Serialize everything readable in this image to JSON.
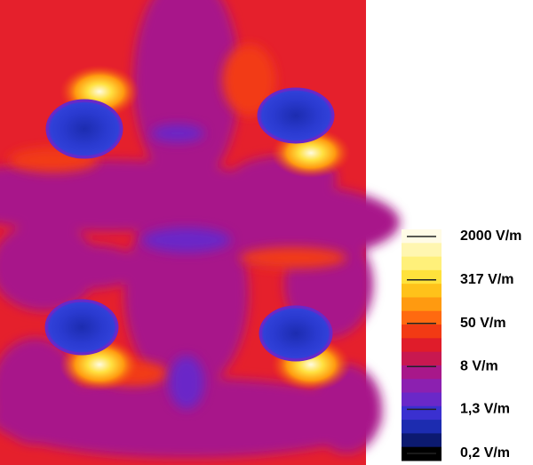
{
  "chart_data": {
    "type": "contour",
    "colorbar": {
      "scale": "log",
      "clim": [
        0.2,
        2000
      ],
      "ticks": [
        {
          "value": 2000,
          "label": "2000 V/m"
        },
        {
          "value": 317,
          "label": "317 V/m"
        },
        {
          "value": 50,
          "label": "50 V/m"
        },
        {
          "value": 8,
          "label": "8 V/m"
        },
        {
          "value": 1.3,
          "label": "1,3 V/m"
        },
        {
          "value": 0.2,
          "label": "0,2 V/m"
        }
      ],
      "colors": [
        "#fffbe6",
        "#fff6b0",
        "#fff07a",
        "#ffe23c",
        "#ffc21a",
        "#ff9a10",
        "#ff6a10",
        "#f23a14",
        "#e01c2a",
        "#c81850",
        "#a8188a",
        "#8c20b0",
        "#6a28c8",
        "#3a30d0",
        "#1c2cb0",
        "#0c1a70",
        "#000000"
      ]
    }
  }
}
